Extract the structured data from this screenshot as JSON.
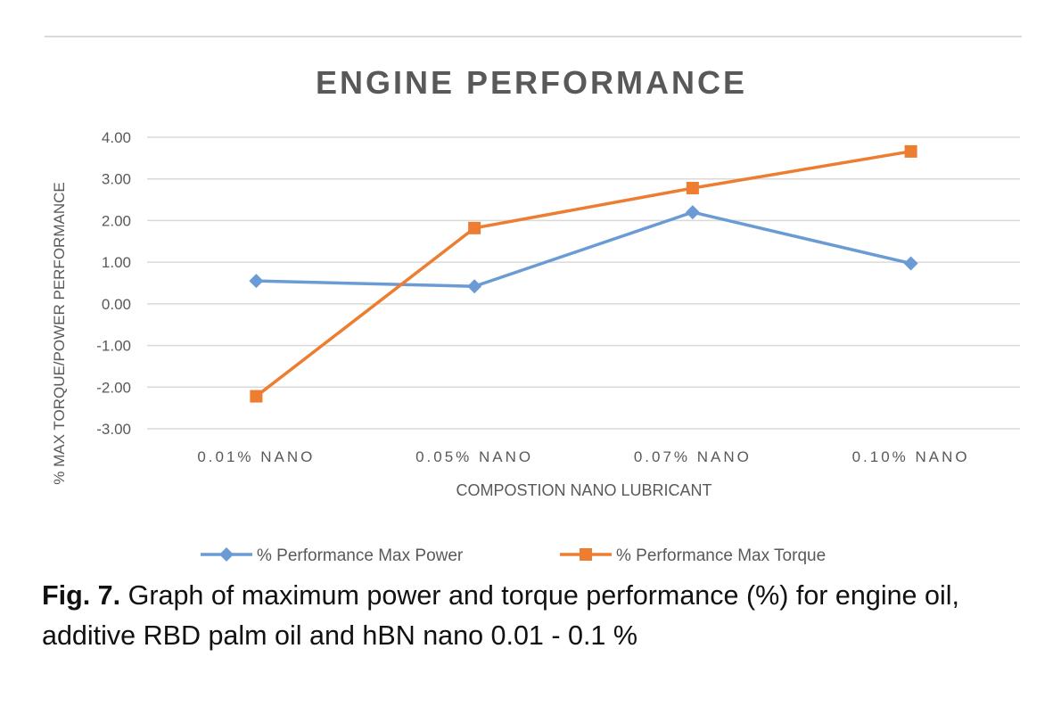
{
  "chart_data": {
    "type": "line",
    "title": "ENGINE PERFORMANCE",
    "xlabel": "COMPOSTION NANO LUBRICANT",
    "ylabel": "% MAX TORQUE/POWER PERFORMANCE",
    "categories": [
      "0.01% NANO",
      "0.05% NANO",
      "0.07% NANO",
      "0.10% NANO"
    ],
    "ylim": [
      -3,
      4
    ],
    "yticks": [
      4,
      3,
      2,
      1,
      0,
      -1,
      -2,
      -3
    ],
    "ytick_labels": [
      "4.00",
      "3.00",
      "2.00",
      "1.00",
      "0.00",
      "-1.00",
      "-2.00",
      "-3.00"
    ],
    "grid": true,
    "legend_position": "bottom",
    "series": [
      {
        "name": "% Performance Max Power",
        "marker": "diamond",
        "color": "#6a9bd5",
        "values": [
          0.55,
          0.42,
          2.2,
          0.97
        ]
      },
      {
        "name": "% Performance Max Torque",
        "marker": "square",
        "color": "#ed7d31",
        "values": [
          -2.22,
          1.82,
          2.78,
          3.66
        ]
      }
    ]
  },
  "caption": {
    "label": "Fig. 7.",
    "text": " Graph of maximum power and torque performance (%) for engine oil, additive RBD palm oil and hBN nano 0.01 - 0.1 %"
  }
}
